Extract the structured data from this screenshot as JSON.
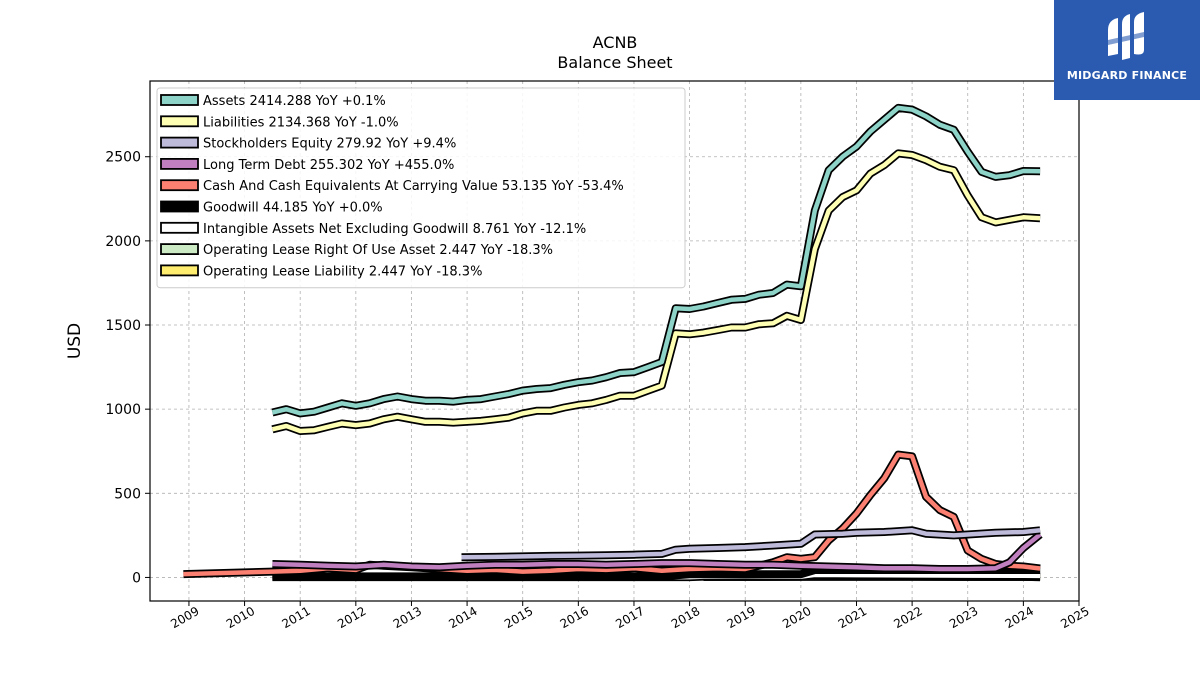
{
  "chart_data": {
    "type": "line",
    "title": "ACNB",
    "subtitle": "Balance  Sheet",
    "ylabel": "USD",
    "xlabel": "",
    "xlim": [
      2008.3,
      2025.0
    ],
    "ylim": [
      -140,
      2950
    ],
    "x_ticks": [
      "2009",
      "2010",
      "2011",
      "2012",
      "2013",
      "2014",
      "2015",
      "2016",
      "2017",
      "2018",
      "2019",
      "2020",
      "2021",
      "2022",
      "2023",
      "2024",
      "2025"
    ],
    "y_ticks": [
      "0",
      "500",
      "1000",
      "1500",
      "2000",
      "2500"
    ],
    "grid": true,
    "legend_position": "top-left",
    "series": [
      {
        "name": "Assets  2414.288 YoY +0.1%",
        "color": "#8dd3c7",
        "kind": "line",
        "x": [
          2010.5,
          2010.75,
          2011.0,
          2011.25,
          2011.5,
          2011.75,
          2012.0,
          2012.25,
          2012.5,
          2012.75,
          2013.0,
          2013.25,
          2013.5,
          2013.75,
          2014.0,
          2014.25,
          2014.5,
          2014.75,
          2015.0,
          2015.25,
          2015.5,
          2015.75,
          2016.0,
          2016.25,
          2016.5,
          2016.75,
          2017.0,
          2017.25,
          2017.5,
          2017.75,
          2018.0,
          2018.25,
          2018.5,
          2018.75,
          2019.0,
          2019.25,
          2019.5,
          2019.75,
          2020.0,
          2020.25,
          2020.5,
          2020.75,
          2021.0,
          2021.25,
          2021.5,
          2021.75,
          2022.0,
          2022.25,
          2022.5,
          2022.75,
          2023.0,
          2023.25,
          2023.5,
          2023.75,
          2024.0,
          2024.3
        ],
        "y": [
          980,
          1000,
          975,
          985,
          1010,
          1035,
          1020,
          1035,
          1060,
          1075,
          1060,
          1050,
          1050,
          1045,
          1055,
          1060,
          1075,
          1090,
          1110,
          1120,
          1125,
          1145,
          1160,
          1170,
          1190,
          1215,
          1220,
          1250,
          1280,
          1600,
          1595,
          1610,
          1630,
          1650,
          1655,
          1680,
          1690,
          1740,
          1730,
          2180,
          2420,
          2500,
          2560,
          2650,
          2720,
          2790,
          2780,
          2740,
          2690,
          2660,
          2530,
          2410,
          2380,
          2390,
          2415,
          2414
        ]
      },
      {
        "name": "Liabilities  2134.368 YoY -1.0%",
        "color": "#ffffb3",
        "kind": "line",
        "x": [
          2010.5,
          2010.75,
          2011.0,
          2011.25,
          2011.5,
          2011.75,
          2012.0,
          2012.25,
          2012.5,
          2012.75,
          2013.0,
          2013.25,
          2013.5,
          2013.75,
          2014.0,
          2014.25,
          2014.5,
          2014.75,
          2015.0,
          2015.25,
          2015.5,
          2015.75,
          2016.0,
          2016.25,
          2016.5,
          2016.75,
          2017.0,
          2017.25,
          2017.5,
          2017.75,
          2018.0,
          2018.25,
          2018.5,
          2018.75,
          2019.0,
          2019.25,
          2019.5,
          2019.75,
          2020.0,
          2020.25,
          2020.5,
          2020.75,
          2021.0,
          2021.25,
          2021.5,
          2021.75,
          2022.0,
          2022.25,
          2022.5,
          2022.75,
          2023.0,
          2023.25,
          2023.5,
          2023.75,
          2024.0,
          2024.3
        ],
        "y": [
          880,
          900,
          870,
          875,
          895,
          915,
          905,
          915,
          940,
          955,
          940,
          925,
          925,
          920,
          925,
          930,
          940,
          950,
          975,
          990,
          990,
          1010,
          1025,
          1035,
          1055,
          1080,
          1080,
          1110,
          1140,
          1450,
          1445,
          1455,
          1470,
          1485,
          1485,
          1505,
          1510,
          1555,
          1530,
          1950,
          2180,
          2260,
          2300,
          2400,
          2450,
          2520,
          2510,
          2480,
          2440,
          2420,
          2270,
          2140,
          2110,
          2125,
          2140,
          2134
        ]
      },
      {
        "name": "Stockholders Equity  279.92 YoY +9.4%",
        "color": "#bebada",
        "kind": "line",
        "x": [
          2013.9,
          2014.5,
          2015.0,
          2015.5,
          2016.0,
          2016.5,
          2017.0,
          2017.5,
          2017.75,
          2018.0,
          2018.5,
          2019.0,
          2019.5,
          2019.75,
          2020.0,
          2020.25,
          2020.75,
          2021.0,
          2021.5,
          2022.0,
          2022.25,
          2022.75,
          2023.0,
          2023.5,
          2024.0,
          2024.3
        ],
        "y": [
          120,
          122,
          125,
          128,
          130,
          132,
          135,
          140,
          165,
          170,
          175,
          180,
          190,
          195,
          200,
          255,
          260,
          265,
          270,
          280,
          260,
          250,
          255,
          265,
          270,
          280
        ]
      },
      {
        "name": "Long Term Debt  255.302 YoY +455.0%",
        "color": "#c080c0",
        "kind": "line",
        "x": [
          2010.5,
          2011.0,
          2011.5,
          2012.0,
          2012.5,
          2013.0,
          2013.5,
          2014.0,
          2014.5,
          2015.0,
          2015.5,
          2016.0,
          2016.5,
          2017.0,
          2017.5,
          2018.0,
          2018.5,
          2019.0,
          2019.5,
          2020.0,
          2020.5,
          2021.0,
          2021.5,
          2022.0,
          2022.5,
          2023.0,
          2023.5,
          2023.75,
          2024.0,
          2024.3
        ],
        "y": [
          80,
          75,
          70,
          65,
          75,
          65,
          60,
          70,
          75,
          75,
          80,
          80,
          75,
          80,
          85,
          85,
          80,
          75,
          75,
          70,
          65,
          60,
          55,
          55,
          50,
          50,
          55,
          90,
          175,
          255
        ]
      },
      {
        "name": "Cash And Cash Equivalents At Carrying Value  53.135 YoY -53.4%",
        "color": "#fb8072",
        "kind": "line",
        "x": [
          2008.9,
          2010.5,
          2011.0,
          2011.5,
          2012.0,
          2012.25,
          2012.5,
          2013.0,
          2013.5,
          2014.0,
          2014.5,
          2015.0,
          2015.5,
          2016.0,
          2016.5,
          2017.0,
          2017.5,
          2018.0,
          2018.5,
          2019.0,
          2019.5,
          2019.75,
          2020.0,
          2020.25,
          2020.5,
          2020.75,
          2021.0,
          2021.25,
          2021.5,
          2021.75,
          2022.0,
          2022.25,
          2022.5,
          2022.75,
          2023.0,
          2023.25,
          2023.5,
          2023.75,
          2024.0,
          2024.3
        ],
        "y": [
          20,
          35,
          40,
          55,
          45,
          75,
          70,
          60,
          50,
          40,
          45,
          35,
          40,
          50,
          45,
          55,
          40,
          50,
          55,
          50,
          90,
          120,
          110,
          120,
          220,
          290,
          380,
          490,
          590,
          730,
          720,
          480,
          400,
          360,
          160,
          110,
          80,
          70,
          65,
          53
        ]
      },
      {
        "name": "Goodwill  44.185 YoY +0.0%",
        "color": "#000000",
        "kind": "line",
        "x": [
          2010.5,
          2013.0,
          2015.0,
          2017.5,
          2018.0,
          2019.0,
          2020.0,
          2020.25,
          2021.0,
          2022.0,
          2023.0,
          2024.0,
          2024.3
        ],
        "y": [
          6,
          6,
          6,
          6,
          19,
          19,
          19,
          44,
          44,
          44,
          44,
          44,
          44
        ]
      },
      {
        "name": "Intangible Assets Net Excluding Goodwill  8.761 YoY -12.1%",
        "color": "#ffffff",
        "kind": "line",
        "x": [
          2010.5,
          2012.0,
          2014.0,
          2016.0,
          2018.0,
          2018.25,
          2019.0,
          2020.0,
          2020.25,
          2021.0,
          2022.0,
          2023.0,
          2024.0,
          2024.3
        ],
        "y": [
          2,
          2,
          2,
          2,
          2,
          5,
          6,
          5,
          15,
          14,
          12,
          11,
          10,
          9
        ]
      },
      {
        "name": "Operating Lease Right Of Use Asset  2.447 YoY -18.3%",
        "color": "#ccebc5",
        "kind": "line",
        "x": [
          2018.25,
          2019.0,
          2020.0,
          2021.0,
          2022.0,
          2023.0,
          2024.0,
          2024.3
        ],
        "y": [
          3,
          3,
          4,
          4,
          4,
          3,
          3,
          2
        ]
      },
      {
        "name": "Operating Lease Liability  2.447 YoY -18.3%",
        "color": "#ffed6f",
        "kind": "line",
        "x": [
          2018.25,
          2019.0,
          2020.0,
          2021.0,
          2022.0,
          2023.0,
          2024.0,
          2024.3
        ],
        "y": [
          3,
          3,
          4,
          4,
          4,
          3,
          3,
          2
        ]
      }
    ]
  },
  "logo": {
    "text": "MIDGARD FINANCE",
    "background": "#2a5bb0"
  }
}
